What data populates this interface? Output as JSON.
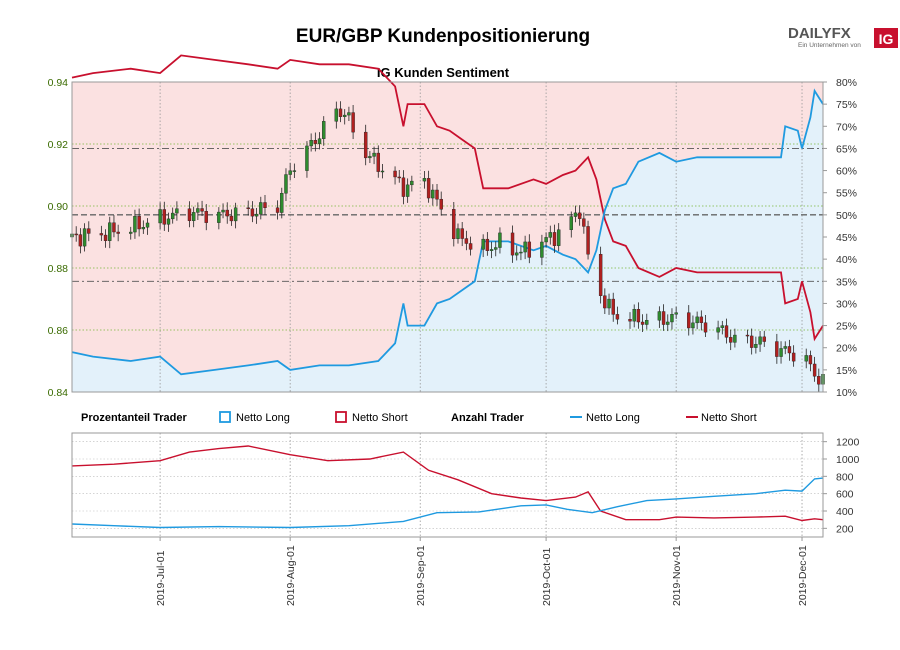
{
  "title": "EUR/GBP Kundenpositionierung",
  "subtitle": "IG Kunden Sentiment",
  "logo": {
    "brand": "DAILYFX",
    "tagline": "Ein Unternehmen von",
    "mark": "IG"
  },
  "legend": {
    "pct_header": "Prozentanteil Trader",
    "count_header": "Anzahl Trader",
    "long": "Netto Long",
    "short": "Netto Short"
  },
  "colors": {
    "long": "#1f9ae0",
    "short": "#c8102e",
    "long_fill": "#e3f1fa",
    "short_fill": "#fbe1e1",
    "candle_up": "#2e8b2e",
    "candle_down": "#b02020"
  },
  "chart_data": [
    {
      "type": "candlestick",
      "title": "IG Kunden Sentiment",
      "ylim": [
        0.84,
        0.94
      ],
      "yticks": [
        "0.94",
        "0.92",
        "0.90",
        "0.88",
        "0.86",
        "0.84"
      ],
      "y2lim": [
        10,
        80
      ],
      "y2ticks": [
        "80%",
        "75%",
        "70%",
        "65%",
        "60%",
        "55%",
        "50%",
        "45%",
        "40%",
        "35%",
        "30%",
        "25%",
        "20%",
        "15%",
        "10%"
      ],
      "x_range": [
        "2019-06-10",
        "2019-12-06"
      ],
      "xticks": [
        "2019-Jul-01",
        "2019-Aug-01",
        "2019-Sep-01",
        "2019-Oct-01",
        "2019-Nov-01",
        "2019-Dec-01"
      ],
      "reference_lines_pct": [
        65,
        50,
        35
      ],
      "close_anchors": [
        [
          "2019-06-10",
          0.89
        ],
        [
          "2019-06-17",
          0.891
        ],
        [
          "2019-06-24",
          0.893
        ],
        [
          "2019-07-01",
          0.896
        ],
        [
          "2019-07-08",
          0.898
        ],
        [
          "2019-07-15",
          0.897
        ],
        [
          "2019-07-22",
          0.898
        ],
        [
          "2019-07-29",
          0.9
        ],
        [
          "2019-08-01",
          0.912
        ],
        [
          "2019-08-05",
          0.918
        ],
        [
          "2019-08-09",
          0.925
        ],
        [
          "2019-08-12",
          0.931
        ],
        [
          "2019-08-14",
          0.93
        ],
        [
          "2019-08-19",
          0.917
        ],
        [
          "2019-08-23",
          0.912
        ],
        [
          "2019-08-28",
          0.906
        ],
        [
          "2019-09-02",
          0.908
        ],
        [
          "2019-09-06",
          0.899
        ],
        [
          "2019-09-10",
          0.89
        ],
        [
          "2019-09-16",
          0.886
        ],
        [
          "2019-09-20",
          0.888
        ],
        [
          "2019-09-25",
          0.885
        ],
        [
          "2019-10-01",
          0.889
        ],
        [
          "2019-10-05",
          0.892
        ],
        [
          "2019-10-09",
          0.899
        ],
        [
          "2019-10-12",
          0.876
        ],
        [
          "2019-10-17",
          0.865
        ],
        [
          "2019-10-25",
          0.863
        ],
        [
          "2019-11-01",
          0.864
        ],
        [
          "2019-11-10",
          0.861
        ],
        [
          "2019-11-15",
          0.857
        ],
        [
          "2019-11-21",
          0.856
        ],
        [
          "2019-11-27",
          0.853
        ],
        [
          "2019-12-01",
          0.852
        ],
        [
          "2019-12-04",
          0.846
        ],
        [
          "2019-12-06",
          0.843
        ]
      ],
      "net_long_pct": [
        [
          "2019-06-10",
          19
        ],
        [
          "2019-06-15",
          18
        ],
        [
          "2019-06-24",
          17
        ],
        [
          "2019-07-01",
          18
        ],
        [
          "2019-07-06",
          14
        ],
        [
          "2019-07-14",
          15
        ],
        [
          "2019-07-22",
          16
        ],
        [
          "2019-07-29",
          17
        ],
        [
          "2019-08-01",
          15
        ],
        [
          "2019-08-08",
          16
        ],
        [
          "2019-08-15",
          16
        ],
        [
          "2019-08-22",
          17
        ],
        [
          "2019-08-26",
          21
        ],
        [
          "2019-08-28",
          30
        ],
        [
          "2019-08-29",
          25
        ],
        [
          "2019-09-02",
          25
        ],
        [
          "2019-09-05",
          30
        ],
        [
          "2019-09-08",
          31
        ],
        [
          "2019-09-11",
          33
        ],
        [
          "2019-09-14",
          35
        ],
        [
          "2019-09-16",
          44
        ],
        [
          "2019-09-22",
          44
        ],
        [
          "2019-09-28",
          42
        ],
        [
          "2019-10-01",
          43
        ],
        [
          "2019-10-05",
          41
        ],
        [
          "2019-10-08",
          40
        ],
        [
          "2019-10-11",
          37
        ],
        [
          "2019-10-13",
          42
        ],
        [
          "2019-10-15",
          51
        ],
        [
          "2019-10-17",
          56
        ],
        [
          "2019-10-20",
          57
        ],
        [
          "2019-10-23",
          62
        ],
        [
          "2019-10-28",
          64
        ],
        [
          "2019-11-01",
          62
        ],
        [
          "2019-11-06",
          63
        ],
        [
          "2019-11-12",
          63
        ],
        [
          "2019-11-18",
          63
        ],
        [
          "2019-11-22",
          63
        ],
        [
          "2019-11-26",
          63
        ],
        [
          "2019-11-27",
          70
        ],
        [
          "2019-11-30",
          69
        ],
        [
          "2019-12-01",
          65
        ],
        [
          "2019-12-03",
          72
        ],
        [
          "2019-12-04",
          78
        ],
        [
          "2019-12-06",
          75
        ]
      ],
      "net_short_pct": [
        [
          "2019-06-10",
          81
        ],
        [
          "2019-06-15",
          82
        ],
        [
          "2019-06-24",
          83
        ],
        [
          "2019-07-01",
          82
        ],
        [
          "2019-07-06",
          86
        ],
        [
          "2019-07-14",
          85
        ],
        [
          "2019-07-22",
          84
        ],
        [
          "2019-07-29",
          83
        ],
        [
          "2019-08-01",
          85
        ],
        [
          "2019-08-08",
          84
        ],
        [
          "2019-08-15",
          84
        ],
        [
          "2019-08-22",
          83
        ],
        [
          "2019-08-26",
          79
        ],
        [
          "2019-08-28",
          70
        ],
        [
          "2019-08-29",
          75
        ],
        [
          "2019-09-02",
          75
        ],
        [
          "2019-09-05",
          70
        ],
        [
          "2019-09-08",
          69
        ],
        [
          "2019-09-11",
          67
        ],
        [
          "2019-09-14",
          65
        ],
        [
          "2019-09-16",
          56
        ],
        [
          "2019-09-22",
          56
        ],
        [
          "2019-09-28",
          58
        ],
        [
          "2019-10-01",
          57
        ],
        [
          "2019-10-05",
          59
        ],
        [
          "2019-10-08",
          60
        ],
        [
          "2019-10-11",
          63
        ],
        [
          "2019-10-13",
          58
        ],
        [
          "2019-10-15",
          49
        ],
        [
          "2019-10-17",
          44
        ],
        [
          "2019-10-20",
          43
        ],
        [
          "2019-10-23",
          38
        ],
        [
          "2019-10-28",
          36
        ],
        [
          "2019-11-01",
          38
        ],
        [
          "2019-11-06",
          37
        ],
        [
          "2019-11-12",
          37
        ],
        [
          "2019-11-18",
          37
        ],
        [
          "2019-11-22",
          37
        ],
        [
          "2019-11-26",
          37
        ],
        [
          "2019-11-27",
          30
        ],
        [
          "2019-11-30",
          31
        ],
        [
          "2019-12-01",
          35
        ],
        [
          "2019-12-03",
          28
        ],
        [
          "2019-12-04",
          22
        ],
        [
          "2019-12-06",
          25
        ]
      ]
    },
    {
      "type": "line",
      "ylim": [
        100,
        1300
      ],
      "yticks": [
        "1200",
        "1000",
        "800",
        "600",
        "400",
        "200"
      ],
      "series": [
        {
          "name": "Netto Long",
          "values": [
            [
              "2019-06-10",
              250
            ],
            [
              "2019-06-20",
              230
            ],
            [
              "2019-07-01",
              210
            ],
            [
              "2019-07-15",
              220
            ],
            [
              "2019-08-01",
              210
            ],
            [
              "2019-08-15",
              230
            ],
            [
              "2019-08-28",
              280
            ],
            [
              "2019-09-05",
              380
            ],
            [
              "2019-09-15",
              390
            ],
            [
              "2019-09-25",
              460
            ],
            [
              "2019-10-01",
              470
            ],
            [
              "2019-10-06",
              420
            ],
            [
              "2019-10-12",
              380
            ],
            [
              "2019-10-18",
              450
            ],
            [
              "2019-10-25",
              520
            ],
            [
              "2019-11-01",
              540
            ],
            [
              "2019-11-10",
              570
            ],
            [
              "2019-11-20",
              600
            ],
            [
              "2019-11-27",
              640
            ],
            [
              "2019-12-01",
              630
            ],
            [
              "2019-12-04",
              770
            ],
            [
              "2019-12-06",
              780
            ]
          ]
        },
        {
          "name": "Netto Short",
          "values": [
            [
              "2019-06-10",
              920
            ],
            [
              "2019-06-20",
              940
            ],
            [
              "2019-07-01",
              980
            ],
            [
              "2019-07-08",
              1080
            ],
            [
              "2019-07-15",
              1120
            ],
            [
              "2019-07-22",
              1150
            ],
            [
              "2019-08-01",
              1050
            ],
            [
              "2019-08-10",
              980
            ],
            [
              "2019-08-20",
              1000
            ],
            [
              "2019-08-28",
              1080
            ],
            [
              "2019-09-03",
              870
            ],
            [
              "2019-09-10",
              760
            ],
            [
              "2019-09-18",
              600
            ],
            [
              "2019-09-25",
              550
            ],
            [
              "2019-10-01",
              520
            ],
            [
              "2019-10-08",
              560
            ],
            [
              "2019-10-11",
              620
            ],
            [
              "2019-10-14",
              400
            ],
            [
              "2019-10-20",
              300
            ],
            [
              "2019-10-28",
              300
            ],
            [
              "2019-11-01",
              330
            ],
            [
              "2019-11-10",
              320
            ],
            [
              "2019-11-20",
              330
            ],
            [
              "2019-11-27",
              340
            ],
            [
              "2019-12-01",
              290
            ],
            [
              "2019-12-04",
              310
            ],
            [
              "2019-12-06",
              300
            ]
          ]
        }
      ]
    }
  ]
}
